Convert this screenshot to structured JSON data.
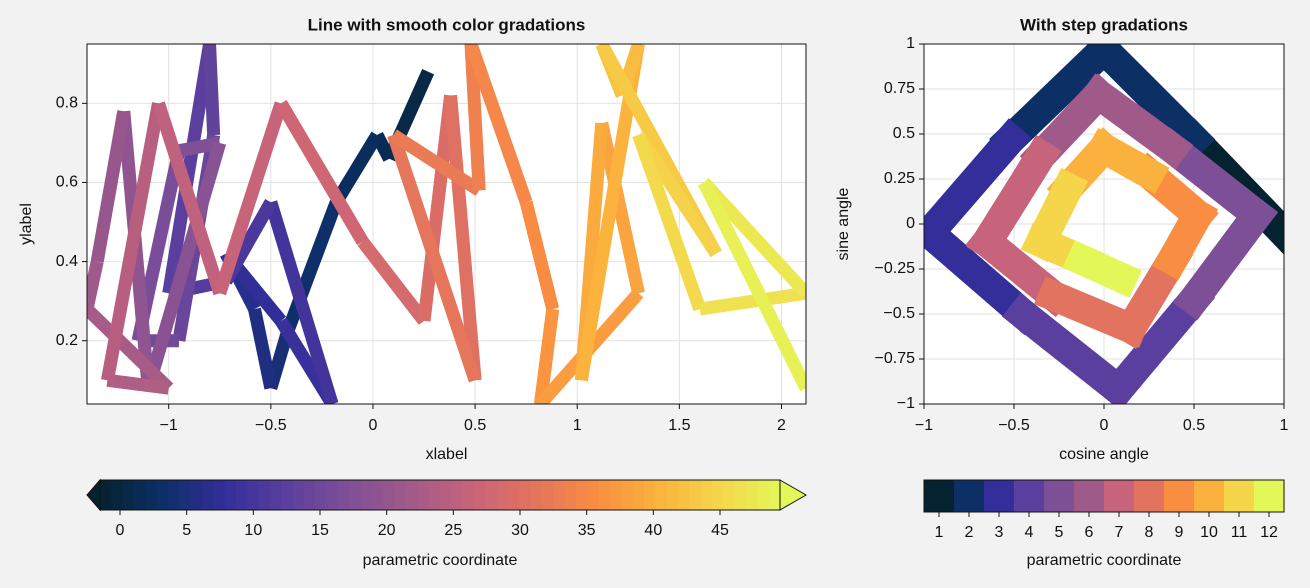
{
  "chart_data": [
    {
      "type": "line",
      "title": "Line with smooth color gradations",
      "xlabel": "xlabel",
      "ylabel": "ylabel",
      "x": [
        0.27,
        0.08,
        0.02,
        -0.18,
        -0.42,
        -0.5,
        -0.58,
        -0.72,
        -0.45,
        -0.2,
        -0.5,
        -0.72,
        -1.0,
        -0.8,
        -0.78,
        -0.95,
        -1.15,
        -0.95,
        -0.75,
        -1.1,
        -1.22,
        -1.35,
        -1.4,
        -1.0,
        -1.3,
        -1.05,
        -0.75,
        -0.45,
        -0.05,
        0.25,
        0.38,
        0.5,
        0.1,
        0.52,
        0.48,
        0.75,
        0.88,
        0.82,
        1.3,
        1.12,
        1.02,
        1.3,
        1.22,
        1.12,
        1.68,
        1.3,
        1.6,
        2.12,
        1.62,
        2.12
      ],
      "y": [
        0.88,
        0.66,
        0.72,
        0.55,
        0.22,
        0.08,
        0.28,
        0.42,
        0.25,
        0.04,
        0.55,
        0.35,
        0.32,
        0.95,
        0.72,
        0.2,
        0.2,
        0.68,
        0.7,
        0.08,
        0.78,
        0.4,
        0.28,
        0.08,
        0.1,
        0.8,
        0.32,
        0.8,
        0.45,
        0.25,
        0.82,
        0.1,
        0.72,
        0.58,
        0.95,
        0.55,
        0.28,
        0.04,
        0.32,
        0.75,
        0.1,
        0.95,
        0.82,
        0.95,
        0.42,
        0.72,
        0.28,
        0.32,
        0.6,
        0.08
      ],
      "c": [
        0,
        1,
        2,
        3,
        4,
        5,
        6,
        7,
        8,
        9,
        10,
        11,
        12,
        13,
        14,
        15,
        16,
        17,
        18,
        19,
        20,
        21,
        22,
        23,
        24,
        25,
        26,
        27,
        28,
        29,
        30,
        31,
        32,
        33,
        34,
        35,
        36,
        37,
        38,
        39,
        40,
        41,
        42,
        43,
        44,
        45,
        46,
        47,
        48,
        49
      ],
      "xlim": [
        -1.4,
        2.12
      ],
      "ylim": [
        0.04,
        0.95
      ],
      "xticks": [
        {
          "value": -1,
          "label": "−1"
        },
        {
          "value": -0.5,
          "label": "−0.5"
        },
        0,
        0.5,
        1,
        1.5,
        2
      ],
      "yticks": [
        0.2,
        0.4,
        0.6,
        0.8
      ],
      "grid": true,
      "colormap": [
        "#04222f",
        "#0c2f66",
        "#332e9a",
        "#5a3f9e",
        "#7d4f97",
        "#a05a8a",
        "#c7637a",
        "#e2735f",
        "#f98d42",
        "#fbb13d",
        "#f5d54a",
        "#e3f758"
      ],
      "colorbar": {
        "label": "parametric coordinate",
        "lim": [
          -1.5,
          49.5
        ],
        "ticks": [
          0,
          5,
          10,
          15,
          20,
          25,
          30,
          35,
          40,
          45
        ],
        "extend": "both",
        "discrete": false
      }
    },
    {
      "type": "line",
      "title": "With step gradations",
      "xlabel": "cosine angle",
      "ylabel": "sine angle",
      "x": [
        1.0,
        0.5,
        0.0,
        -0.52,
        -0.97,
        -0.45,
        0.08,
        0.5,
        0.85,
        0.38,
        -0.03,
        -0.35,
        -0.65,
        -0.28,
        0.15,
        0.38,
        0.52,
        0.25,
        0.0,
        -0.2,
        -0.35,
        -0.12,
        0.1
      ],
      "y": [
        -0.05,
        0.47,
        0.97,
        0.47,
        -0.05,
        -0.5,
        -0.92,
        -0.42,
        0.05,
        0.42,
        0.72,
        0.38,
        -0.1,
        -0.4,
        -0.58,
        -0.2,
        0.05,
        0.28,
        0.42,
        0.2,
        -0.1,
        -0.2,
        -0.3
      ],
      "c": [
        1,
        2,
        2,
        3,
        3,
        4,
        4,
        5,
        5,
        6,
        6,
        7,
        7,
        8,
        8,
        9,
        9,
        10,
        10,
        11,
        11,
        12,
        12
      ],
      "xlim": [
        -1,
        1
      ],
      "ylim": [
        -1,
        1
      ],
      "xticks": [
        {
          "value": -1,
          "label": "−1"
        },
        {
          "value": -0.5,
          "label": "−0.5"
        },
        0,
        0.5,
        1
      ],
      "yticks": [
        {
          "value": -1,
          "label": "−1"
        },
        {
          "value": -0.75,
          "label": "−0.75"
        },
        {
          "value": -0.5,
          "label": "−0.5"
        },
        {
          "value": -0.25,
          "label": "−0.25"
        },
        0,
        0.25,
        0.5,
        0.75,
        1
      ],
      "grid": true,
      "colormap": [
        "#04222f",
        "#0c2f66",
        "#332e9a",
        "#5a3f9e",
        "#7d4f97",
        "#a05a8a",
        "#c7637a",
        "#e2735f",
        "#f98d42",
        "#fbb13d",
        "#f5d54a",
        "#e3f758"
      ],
      "colorbar": {
        "label": "parametric coordinate",
        "lim": [
          0.5,
          12.5
        ],
        "ticks": [
          1,
          2,
          3,
          4,
          5,
          6,
          7,
          8,
          9,
          10,
          11,
          12
        ],
        "extend": "neither",
        "discrete": true
      }
    }
  ]
}
